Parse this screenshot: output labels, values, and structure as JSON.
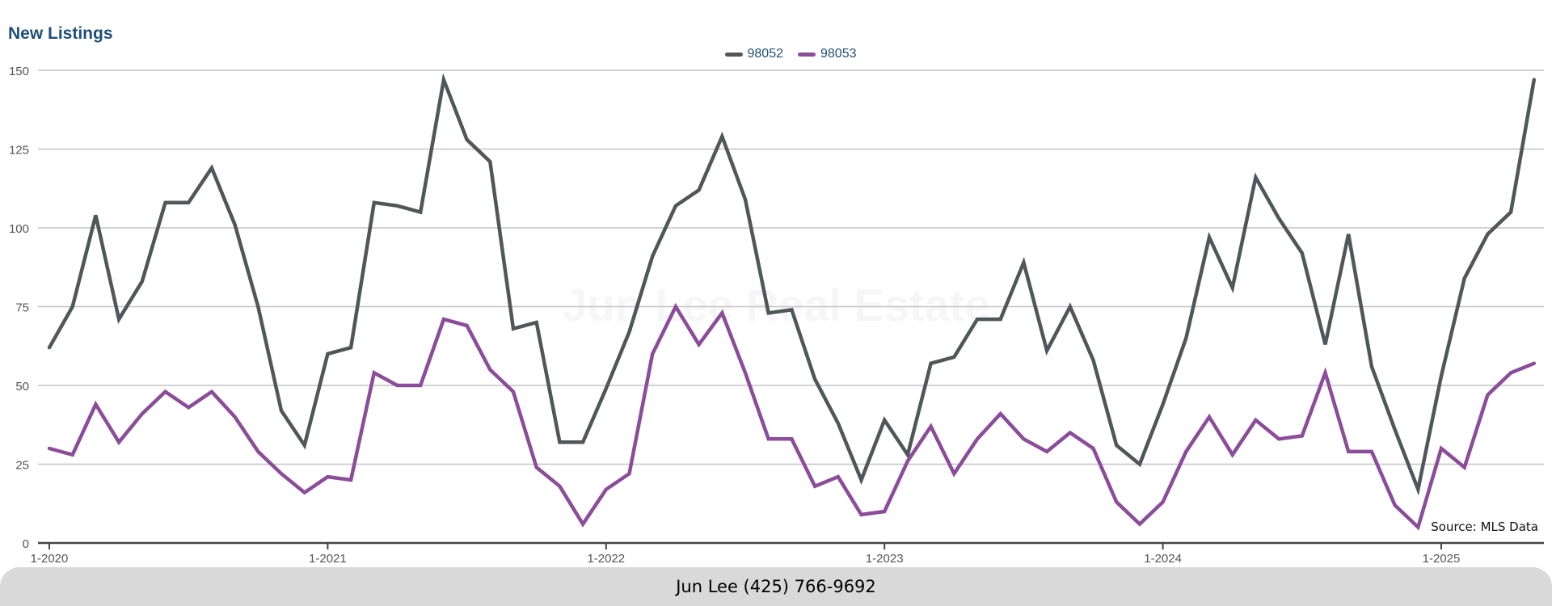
{
  "chart_data": {
    "type": "line",
    "title": "New Listings",
    "ylim": [
      0,
      150
    ],
    "yticks": [
      0,
      25,
      50,
      75,
      100,
      125,
      150
    ],
    "x_tick_labels": [
      {
        "label": "1-2020",
        "index": 0
      },
      {
        "label": "1-2021",
        "index": 12
      },
      {
        "label": "1-2022",
        "index": 24
      },
      {
        "label": "1-2023",
        "index": 36
      },
      {
        "label": "1-2024",
        "index": 48
      },
      {
        "label": "1-2025",
        "index": 60
      }
    ],
    "grid": true,
    "legend_position": "top-center",
    "series": [
      {
        "name": "98052",
        "color": "#505758",
        "values": [
          62,
          75,
          104,
          71,
          83,
          108,
          108,
          119,
          101,
          75,
          42,
          31,
          60,
          62,
          108,
          107,
          105,
          147,
          128,
          121,
          68,
          70,
          32,
          32,
          49,
          67,
          91,
          107,
          112,
          129,
          109,
          73,
          74,
          52,
          38,
          20,
          39,
          28,
          57,
          59,
          71,
          71,
          89,
          61,
          75,
          58,
          31,
          25,
          44,
          65,
          97,
          81,
          116,
          103,
          92,
          63,
          98,
          56,
          36,
          17,
          53,
          84,
          98,
          105,
          147
        ]
      },
      {
        "name": "98053",
        "color": "#8b4c99",
        "values": [
          30,
          28,
          44,
          32,
          41,
          48,
          43,
          48,
          40,
          29,
          22,
          16,
          21,
          20,
          54,
          50,
          50,
          71,
          69,
          55,
          48,
          24,
          18,
          6,
          17,
          22,
          60,
          75,
          63,
          73,
          54,
          33,
          33,
          18,
          21,
          9,
          10,
          26,
          37,
          22,
          33,
          41,
          33,
          29,
          35,
          30,
          13,
          6,
          13,
          29,
          40,
          28,
          39,
          33,
          34,
          54,
          29,
          29,
          12,
          5,
          30,
          24,
          47,
          54,
          57
        ]
      }
    ]
  },
  "watermark": "Jun Lee Real Estate",
  "source_note": "Source: MLS Data",
  "footer": "Jun Lee (425) 766-9692"
}
